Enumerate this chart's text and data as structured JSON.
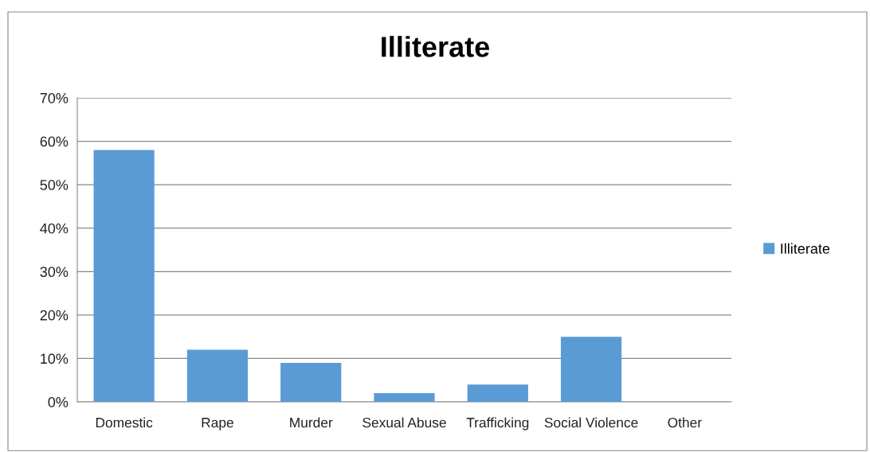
{
  "chart_data": {
    "type": "bar",
    "title": "Illiterate",
    "categories": [
      "Domestic",
      "Rape",
      "Murder",
      "Sexual Abuse",
      "Trafficking",
      "Social Violence",
      "Other"
    ],
    "series": [
      {
        "name": "Illiterate",
        "color": "#5b9bd5",
        "values": [
          58,
          12,
          9,
          2,
          4,
          15,
          0
        ]
      }
    ],
    "ylim": [
      0,
      70
    ],
    "yticks": [
      {
        "value": 0,
        "label": "0%"
      },
      {
        "value": 10,
        "label": "10%"
      },
      {
        "value": 20,
        "label": "20%"
      },
      {
        "value": 30,
        "label": "30%"
      },
      {
        "value": 40,
        "label": "40%"
      },
      {
        "value": 50,
        "label": "50%"
      },
      {
        "value": 60,
        "label": "60%"
      },
      {
        "value": 70,
        "label": "70%"
      }
    ],
    "grid": "y",
    "legend": "right"
  }
}
